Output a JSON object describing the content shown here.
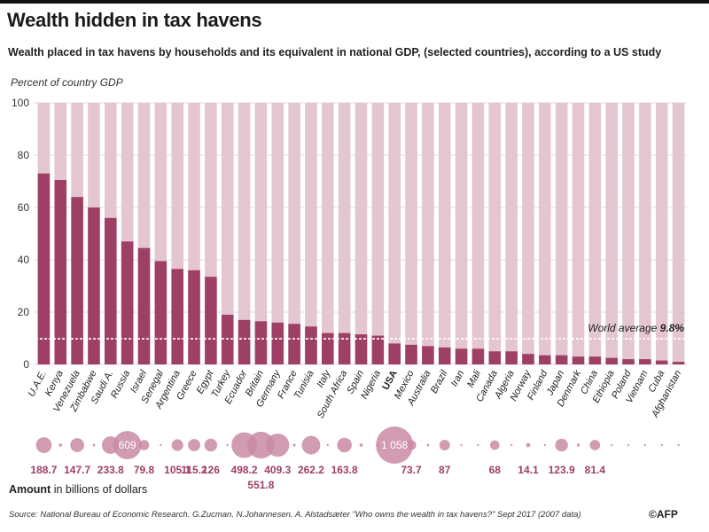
{
  "header": {
    "title": "Wealth hidden in tax havens",
    "subtitle": "Wealth placed in tax havens by households and its equivalent in national GDP, (selected countries), according to a US study"
  },
  "footer": {
    "amount_label_bold": "Amount",
    "amount_label_rest": " in billions of dollars",
    "source": "Source:  National Bureau of Economic Research. G.Zucman. N.Johannesen. A. Alstadsæter  \"Who owns the wealth in tax havens?\" Sept 2017 (2007 data)",
    "logo": "©AFP"
  },
  "colors": {
    "bar": "#9e3f66",
    "background_bar": "#e4c6d0",
    "bubble": "#c98aa5",
    "grid": "#bbbbbb",
    "average_line": "#ffffff",
    "amount_text": "#9e3f66"
  },
  "chart_data": {
    "type": "bar",
    "ylabel": "Percent of country GDP",
    "ylim": [
      0,
      100
    ],
    "yticks": [
      0,
      20,
      40,
      60,
      80,
      100
    ],
    "grid": true,
    "average": {
      "label": "World average",
      "value": 9.8,
      "value_label": "9.8%"
    },
    "categories": [
      "U.A.E.",
      "Kenya",
      "Venezuela",
      "Zimbabwe",
      "Saudi A.",
      "Russia",
      "Israel",
      "Senegal",
      "Argentina",
      "Greece",
      "Egypt",
      "Turkey",
      "Ecuador",
      "Britain",
      "Germany",
      "France",
      "Tunisia",
      "Italy",
      "South Africa",
      "Spain",
      "Nigeria",
      "USA",
      "Mexico",
      "Australia",
      "Brazil",
      "Iran",
      "Mali",
      "Canada",
      "Algeria",
      "Norway",
      "Finland",
      "Japan",
      "Denmark",
      "China",
      "Ethiopia",
      "Poland",
      "Vietnam",
      "Cuba",
      "Afghanistan"
    ],
    "bold_categories": [
      "USA"
    ],
    "values": [
      73,
      70.5,
      64,
      60,
      56,
      47,
      44.5,
      39.5,
      36.5,
      36,
      33.5,
      19,
      17,
      16.5,
      16,
      15.5,
      14.5,
      12,
      12,
      11.5,
      11,
      8,
      7.5,
      7,
      6.5,
      6,
      6,
      5,
      5,
      4,
      3.5,
      3.5,
      3,
      3,
      2.5,
      2,
      2,
      1.5,
      1
    ],
    "amounts": [
      188.7,
      8,
      147.7,
      5,
      233.8,
      609,
      79.8,
      3,
      105.1,
      115.2,
      126,
      4,
      498.2,
      551.8,
      409.3,
      6,
      262.2,
      2,
      163.8,
      8,
      5,
      1058,
      73.7,
      5,
      87,
      2,
      2,
      68,
      2,
      14.1,
      2,
      123.9,
      7,
      81.4,
      1,
      3,
      2,
      1,
      1
    ],
    "amount_labels": [
      "188.7",
      "",
      "147.7",
      "",
      "233.8",
      "609",
      "79.8",
      "",
      "105.1",
      "115.2",
      "126",
      "",
      "498.2",
      "551.8",
      "409.3",
      "",
      "262.2",
      "",
      "163.8",
      "",
      "",
      "1 058",
      "73.7",
      "",
      "87",
      "",
      "",
      "68",
      "",
      "14.1",
      "",
      "123.9",
      "",
      "81.4",
      "",
      "",
      "",
      "",
      ""
    ],
    "amount_label_inside": [
      "609",
      "1 058"
    ],
    "amount_label_lowered": [
      "551.8"
    ]
  }
}
